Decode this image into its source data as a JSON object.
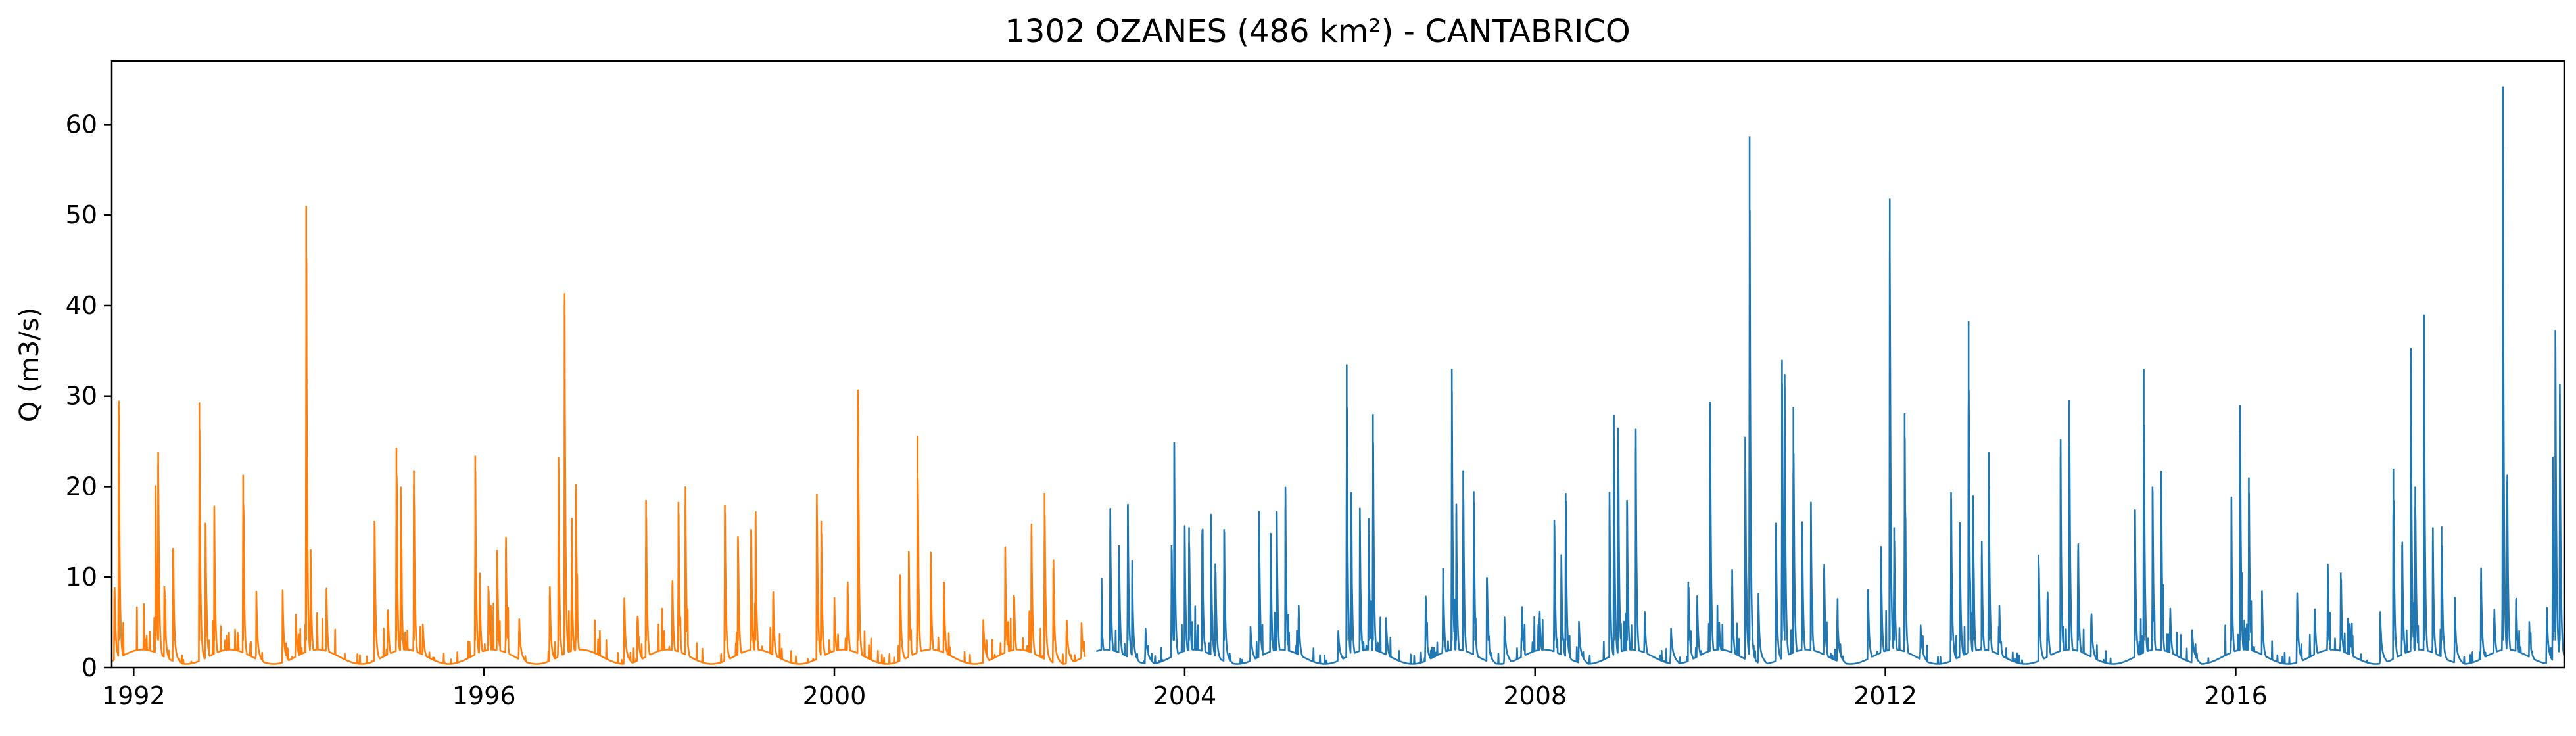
{
  "chart_data": {
    "type": "line",
    "title": "1302 OZANES (486 km²) - CANTABRICO",
    "xlabel": "",
    "ylabel": "Q (m3/s)",
    "xlim": [
      1991.75,
      2019.75
    ],
    "ylim": [
      0,
      67
    ],
    "x_ticks": [
      1992,
      1996,
      2000,
      2004,
      2008,
      2012,
      2016
    ],
    "x_tick_labels": [
      "1992",
      "1996",
      "2000",
      "2004",
      "2008",
      "2012",
      "2016"
    ],
    "y_ticks": [
      0,
      10,
      20,
      30,
      40,
      50,
      60
    ],
    "y_tick_labels": [
      "0",
      "10",
      "20",
      "30",
      "40",
      "50",
      "60"
    ],
    "grid": false,
    "legend": "none",
    "colors": {
      "series_1": "#ff7f0e",
      "series_2": "#1f77b4"
    },
    "series": [
      {
        "color": "#ff7f0e",
        "peaks": [
          [
            1991.78,
            8.5
          ],
          [
            1991.83,
            29.5
          ],
          [
            1992.25,
            19.5
          ],
          [
            1992.28,
            23.8
          ],
          [
            1992.35,
            9.0
          ],
          [
            1992.45,
            13.2
          ],
          [
            1992.75,
            29.3
          ],
          [
            1992.82,
            16.0
          ],
          [
            1992.92,
            16.0
          ],
          [
            1993.25,
            21.3
          ],
          [
            1993.4,
            6.5
          ],
          [
            1993.7,
            6.5
          ],
          [
            1993.85,
            4.5
          ],
          [
            1993.97,
            51.0
          ],
          [
            1994.02,
            11.7
          ],
          [
            1994.2,
            7.5
          ],
          [
            1994.75,
            16.2
          ],
          [
            1994.9,
            6.0
          ],
          [
            1995.0,
            24.3
          ],
          [
            1995.05,
            20.0
          ],
          [
            1995.2,
            21.8
          ],
          [
            1995.3,
            3.0
          ],
          [
            1995.9,
            23.4
          ],
          [
            1995.95,
            9.0
          ],
          [
            1996.05,
            9.0
          ],
          [
            1996.15,
            13.0
          ],
          [
            1996.25,
            13.2
          ],
          [
            1996.4,
            4.0
          ],
          [
            1996.75,
            8.0
          ],
          [
            1996.85,
            22.0
          ],
          [
            1996.92,
            40.5
          ],
          [
            1997.0,
            12.5
          ],
          [
            1997.05,
            20.3
          ],
          [
            1997.6,
            6.5
          ],
          [
            1997.75,
            5.0
          ],
          [
            1997.85,
            18.5
          ],
          [
            1998.15,
            9.2
          ],
          [
            1998.22,
            18.3
          ],
          [
            1998.3,
            18.0
          ],
          [
            1998.75,
            18.0
          ],
          [
            1998.9,
            14.5
          ],
          [
            1999.05,
            15.3
          ],
          [
            1999.1,
            16.5
          ],
          [
            1999.3,
            7.5
          ],
          [
            1999.8,
            19.2
          ],
          [
            1999.85,
            16.2
          ],
          [
            2000.0,
            5.5
          ],
          [
            2000.15,
            9.0
          ],
          [
            2000.27,
            30.7
          ],
          [
            2000.75,
            9.5
          ],
          [
            2000.85,
            11.0
          ],
          [
            2000.95,
            25.6
          ],
          [
            2001.1,
            11.5
          ],
          [
            2001.25,
            9.5
          ],
          [
            2001.7,
            3.0
          ],
          [
            2001.95,
            12.3
          ],
          [
            2002.05,
            8.0
          ],
          [
            2002.25,
            14.8
          ],
          [
            2002.4,
            19.3
          ],
          [
            2002.5,
            11.0
          ],
          [
            2002.65,
            4.0
          ],
          [
            2002.82,
            3.0
          ]
        ]
      },
      {
        "color": "#1f77b4",
        "peaks": [
          [
            2003.05,
            3.5
          ],
          [
            2003.15,
            15.3
          ],
          [
            2003.25,
            13.5
          ],
          [
            2003.35,
            17.9
          ],
          [
            2003.4,
            10.0
          ],
          [
            2003.55,
            2.5
          ],
          [
            2003.85,
            13.5
          ],
          [
            2003.88,
            24.9
          ],
          [
            2004.0,
            13.5
          ],
          [
            2004.05,
            15.5
          ],
          [
            2004.2,
            14.8
          ],
          [
            2004.3,
            14.5
          ],
          [
            2004.35,
            11.5
          ],
          [
            2004.45,
            15.3
          ],
          [
            2004.75,
            2.5
          ],
          [
            2004.85,
            15.3
          ],
          [
            2004.98,
            14.8
          ],
          [
            2005.05,
            17.3
          ],
          [
            2005.15,
            17.7
          ],
          [
            2005.3,
            5.5
          ],
          [
            2005.75,
            2.5
          ],
          [
            2005.85,
            33.5
          ],
          [
            2005.9,
            19.4
          ],
          [
            2006.0,
            15.5
          ],
          [
            2006.1,
            16.5
          ],
          [
            2006.15,
            28.0
          ],
          [
            2006.3,
            3.0
          ],
          [
            2006.75,
            6.5
          ],
          [
            2006.95,
            11.0
          ],
          [
            2007.05,
            33.0
          ],
          [
            2007.1,
            17.0
          ],
          [
            2007.18,
            21.8
          ],
          [
            2007.3,
            19.5
          ],
          [
            2007.45,
            10.0
          ],
          [
            2007.65,
            3.5
          ],
          [
            2007.85,
            5.5
          ],
          [
            2008.05,
            5.5
          ],
          [
            2008.22,
            16.3
          ],
          [
            2008.3,
            10.0
          ],
          [
            2008.35,
            19.3
          ],
          [
            2008.5,
            3.0
          ],
          [
            2008.85,
            17.5
          ],
          [
            2008.9,
            27.9
          ],
          [
            2008.95,
            26.5
          ],
          [
            2009.05,
            18.5
          ],
          [
            2009.15,
            24.2
          ],
          [
            2009.25,
            5.0
          ],
          [
            2009.55,
            2.5
          ],
          [
            2009.75,
            9.5
          ],
          [
            2009.85,
            7.0
          ],
          [
            2010.0,
            27.5
          ],
          [
            2010.1,
            3.5
          ],
          [
            2010.25,
            9.0
          ],
          [
            2010.4,
            25.5
          ],
          [
            2010.45,
            58.7
          ],
          [
            2010.55,
            6.0
          ],
          [
            2010.75,
            16.0
          ],
          [
            2010.82,
            34.0
          ],
          [
            2010.85,
            31.0
          ],
          [
            2010.95,
            28.8
          ],
          [
            2011.05,
            16.0
          ],
          [
            2011.15,
            16.0
          ],
          [
            2011.3,
            11.0
          ],
          [
            2011.45,
            5.0
          ],
          [
            2011.8,
            8.5
          ],
          [
            2011.95,
            12.0
          ],
          [
            2012.05,
            51.8
          ],
          [
            2012.1,
            15.5
          ],
          [
            2012.22,
            28.1
          ],
          [
            2012.4,
            3.0
          ],
          [
            2012.75,
            19.4
          ],
          [
            2012.85,
            14.0
          ],
          [
            2012.95,
            38.3
          ],
          [
            2013.0,
            19.0
          ],
          [
            2013.1,
            12.5
          ],
          [
            2013.18,
            23.8
          ],
          [
            2013.3,
            5.5
          ],
          [
            2013.75,
            12.5
          ],
          [
            2013.85,
            7.5
          ],
          [
            2014.0,
            23.3
          ],
          [
            2014.1,
            29.6
          ],
          [
            2014.2,
            13.0
          ],
          [
            2014.35,
            5.0
          ],
          [
            2014.85,
            15.5
          ],
          [
            2014.95,
            33.0
          ],
          [
            2015.05,
            20.0
          ],
          [
            2015.15,
            19.5
          ],
          [
            2015.25,
            5.5
          ],
          [
            2015.5,
            2.5
          ],
          [
            2015.95,
            15.5
          ],
          [
            2016.05,
            29.0
          ],
          [
            2016.15,
            21.0
          ],
          [
            2016.3,
            6.0
          ],
          [
            2016.7,
            7.5
          ],
          [
            2016.9,
            6.0
          ],
          [
            2017.05,
            10.5
          ],
          [
            2017.2,
            10.5
          ],
          [
            2017.3,
            3.0
          ],
          [
            2017.65,
            3.5
          ],
          [
            2017.8,
            22.0
          ],
          [
            2017.9,
            13.5
          ],
          [
            2018.0,
            33.6
          ],
          [
            2018.05,
            20.0
          ],
          [
            2018.15,
            39.0
          ],
          [
            2018.25,
            14.0
          ],
          [
            2018.35,
            15.6
          ],
          [
            2018.5,
            6.0
          ],
          [
            2018.8,
            9.5
          ],
          [
            2018.95,
            5.5
          ],
          [
            2019.05,
            64.2
          ],
          [
            2019.1,
            20.5
          ],
          [
            2019.2,
            7.5
          ],
          [
            2019.35,
            3.0
          ],
          [
            2019.55,
            5.5
          ],
          [
            2019.62,
            23.3
          ],
          [
            2019.65,
            37.3
          ],
          [
            2019.7,
            30.2
          ]
        ]
      }
    ]
  }
}
